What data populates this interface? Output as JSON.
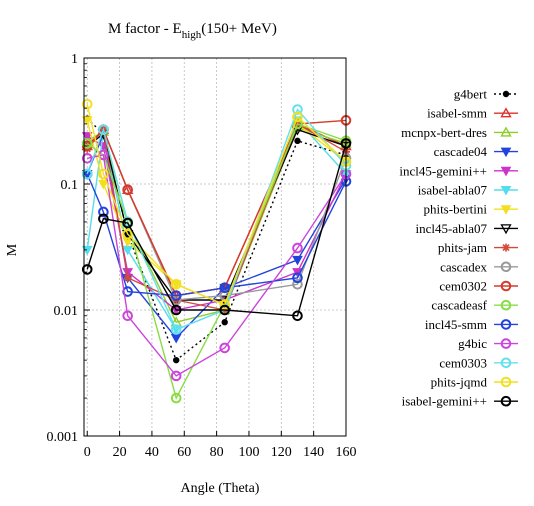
{
  "chart_data": {
    "type": "line",
    "title_main": "M factor - E",
    "title_sub": "high",
    "title_tail": "(150+ MeV)",
    "xlabel": "Angle (Theta)",
    "ylabel": "M",
    "xlim": [
      -2,
      160
    ],
    "ylim": [
      0.001,
      1
    ],
    "yscale": "log",
    "x_ticks": [
      "0",
      "20",
      "40",
      "60",
      "80",
      "100",
      "120",
      "140",
      "160"
    ],
    "x_tick_values": [
      0,
      20,
      40,
      60,
      80,
      100,
      120,
      140,
      160
    ],
    "y_ticks": [
      "0.001",
      "0.01",
      "0.1",
      "1"
    ],
    "y_tick_values": [
      0.001,
      0.01,
      0.1,
      1
    ],
    "grid": true,
    "legend_position": "right",
    "x": [
      0,
      10,
      25,
      55,
      85,
      130,
      160
    ],
    "series": [
      {
        "name": "g4bert",
        "color": "#000000",
        "marker": "dot",
        "dash": "2,3",
        "values": [
          0.33,
          0.25,
          0.04,
          0.004,
          0.008,
          0.22,
          0.17
        ]
      },
      {
        "name": "isabel-smm",
        "color": "#e0302c",
        "marker": "tri-up",
        "dash": "",
        "values": [
          0.2,
          0.27,
          0.09,
          0.013,
          0.015,
          0.3,
          0.2
        ]
      },
      {
        "name": "mcnpx-bert-dres",
        "color": "#8ecf2a",
        "marker": "tri-up",
        "dash": "",
        "values": [
          0.22,
          0.26,
          0.05,
          0.008,
          0.01,
          0.28,
          0.21
        ]
      },
      {
        "name": "cascade04",
        "color": "#2244dd",
        "marker": "tri-down",
        "dash": "",
        "values": [
          0.12,
          0.25,
          0.018,
          0.006,
          0.015,
          0.025,
          0.11
        ]
      },
      {
        "name": "incl45-gemini++",
        "color": "#cc33cc",
        "marker": "tri-down",
        "dash": "",
        "values": [
          0.24,
          0.2,
          0.02,
          0.01,
          0.012,
          0.02,
          0.12
        ]
      },
      {
        "name": "isabel-abla07",
        "color": "#55ddee",
        "marker": "tri-down",
        "dash": "",
        "values": [
          0.03,
          0.26,
          0.03,
          0.007,
          0.01,
          0.32,
          0.12
        ]
      },
      {
        "name": "phits-bertini",
        "color": "#f2e020",
        "marker": "tri-down",
        "dash": "",
        "values": [
          0.32,
          0.1,
          0.035,
          0.016,
          0.011,
          0.3,
          0.15
        ]
      },
      {
        "name": "incl45-abla07",
        "color": "#000000",
        "marker": "tri-down-open",
        "dash": "",
        "values": [
          0.2,
          0.25,
          0.04,
          0.012,
          0.012,
          0.27,
          0.2
        ]
      },
      {
        "name": "phits-jam",
        "color": "#d44a3a",
        "marker": "star",
        "dash": "",
        "values": [
          0.19,
          0.27,
          0.018,
          0.012,
          0.01,
          0.3,
          0.18
        ]
      },
      {
        "name": "cascadex",
        "color": "#999999",
        "marker": "circle-open",
        "dash": "",
        "values": [
          0.2,
          0.27,
          0.09,
          0.012,
          0.013,
          0.016,
          0.16
        ]
      },
      {
        "name": "cem0302",
        "color": "#d63a2a",
        "marker": "circle-open",
        "dash": "",
        "values": [
          0.2,
          0.27,
          0.09,
          0.013,
          0.015,
          0.3,
          0.32
        ]
      },
      {
        "name": "cascadeasf",
        "color": "#88dd44",
        "marker": "circle-open",
        "dash": "",
        "values": [
          0.21,
          0.17,
          0.05,
          0.002,
          0.011,
          0.3,
          0.22
        ]
      },
      {
        "name": "incl45-smm",
        "color": "#2244dd",
        "marker": "circle-open",
        "dash": "",
        "values": [
          0.12,
          0.06,
          0.014,
          0.013,
          0.015,
          0.018,
          0.105
        ]
      },
      {
        "name": "g4bic",
        "color": "#cc44dd",
        "marker": "circle-open",
        "dash": "",
        "values": [
          0.16,
          0.17,
          0.009,
          0.003,
          0.005,
          0.031,
          0.12
        ]
      },
      {
        "name": "cem0303",
        "color": "#66e0ee",
        "marker": "circle-open",
        "dash": "",
        "values": [
          0.12,
          0.27,
          0.05,
          0.007,
          0.01,
          0.39,
          0.14
        ]
      },
      {
        "name": "phits-jqmd",
        "color": "#f2e020",
        "marker": "circle-open",
        "dash": "",
        "values": [
          0.43,
          0.12,
          0.04,
          0.016,
          0.011,
          0.34,
          0.15
        ]
      },
      {
        "name": "isabel-gemini++",
        "color": "#000000",
        "marker": "circle-open",
        "dash": "",
        "values": [
          0.021,
          0.053,
          0.049,
          0.01,
          0.01,
          0.009,
          0.21
        ]
      }
    ]
  }
}
